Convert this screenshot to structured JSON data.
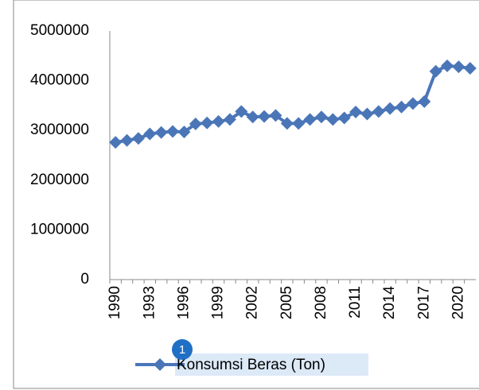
{
  "chart_data": {
    "type": "line",
    "categories": [
      "1990",
      null,
      null,
      "1993",
      null,
      null,
      "1996",
      null,
      null,
      "1999",
      null,
      null,
      "2002",
      null,
      null,
      "2005",
      null,
      null,
      "2008",
      null,
      null,
      "2011",
      null,
      null,
      "2014",
      null,
      null,
      "2017",
      null,
      null,
      "2020",
      null
    ],
    "series": [
      {
        "name": "Konsumsi Beras (Ton)",
        "color": "#4a76b8",
        "values": [
          2760000,
          2800000,
          2840000,
          2930000,
          2960000,
          2980000,
          2970000,
          3130000,
          3150000,
          3180000,
          3220000,
          3380000,
          3270000,
          3280000,
          3300000,
          3140000,
          3140000,
          3220000,
          3270000,
          3220000,
          3250000,
          3370000,
          3330000,
          3380000,
          3440000,
          3470000,
          3540000,
          3580000,
          4190000,
          4300000,
          4280000,
          4250000
        ]
      }
    ],
    "ylim": [
      0,
      5000000
    ],
    "yticks": [
      0,
      1000000,
      2000000,
      3000000,
      4000000,
      5000000
    ],
    "grid": false,
    "legend": "bottom",
    "annotation": "1"
  }
}
